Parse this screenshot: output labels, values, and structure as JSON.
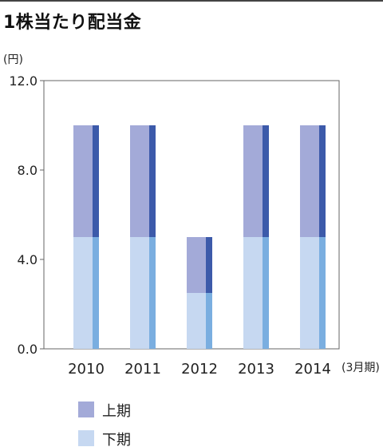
{
  "chart_data": {
    "type": "bar",
    "stacked": true,
    "title": "1株当たり配当金",
    "ylabel": "(円)",
    "xlabel": "(3月期)",
    "categories": [
      "2010",
      "2011",
      "2012",
      "2013",
      "2014"
    ],
    "y_ticks": [
      "0.0",
      "4.0",
      "8.0",
      "12.0"
    ],
    "ylim": [
      0,
      12
    ],
    "grid": false,
    "legend_position": "bottom-left",
    "series": [
      {
        "name": "下期",
        "values": [
          5.0,
          5.0,
          2.5,
          5.0,
          5.0
        ],
        "color": "#c6d8f1",
        "edge_color": "#7aaee0"
      },
      {
        "name": "上期",
        "values": [
          5.0,
          5.0,
          2.5,
          5.0,
          5.0
        ],
        "color": "#a3aad8",
        "edge_color": "#3c5aaa"
      }
    ],
    "legend": [
      {
        "label": "上期",
        "color": "#a3aad8"
      },
      {
        "label": "下期",
        "color": "#c6d8f1"
      }
    ]
  }
}
